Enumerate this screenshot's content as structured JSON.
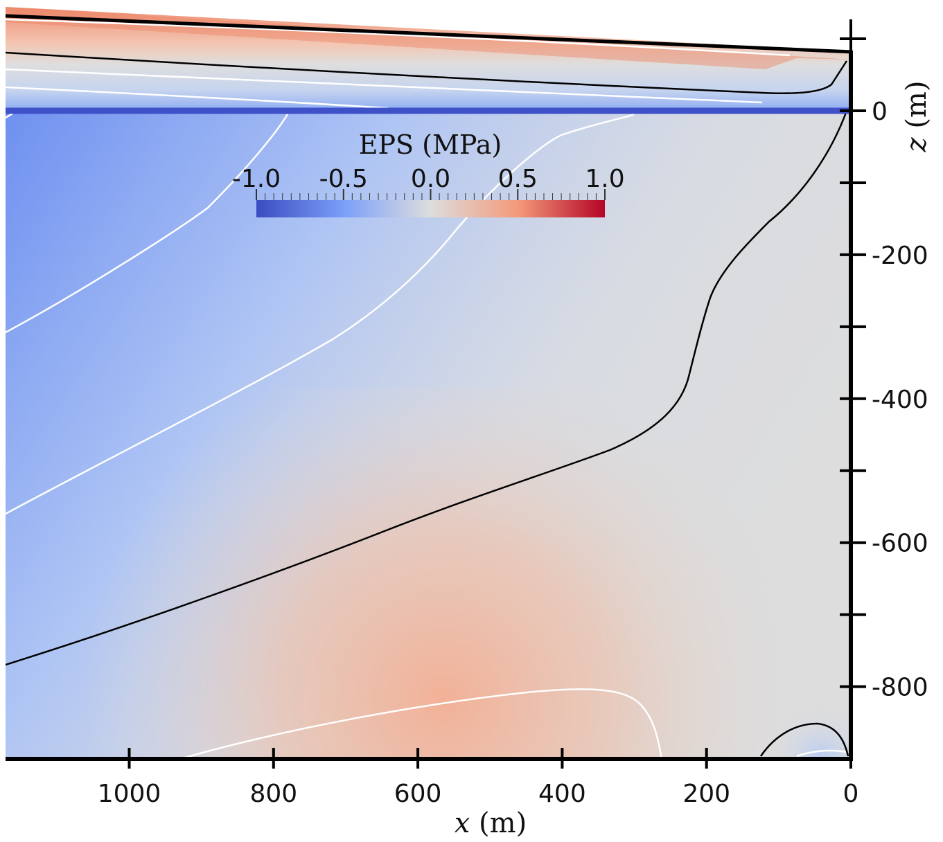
{
  "chart_data": {
    "type": "heatmap",
    "title": "",
    "xlabel": {
      "var": "x",
      "unit": " (m)"
    },
    "ylabel": {
      "var": "z",
      "unit": " (m)"
    },
    "x_axis_reversed": true,
    "xlim": [
      1170,
      0
    ],
    "ylim": [
      -900,
      80
    ],
    "x_ticks": [
      1000,
      800,
      600,
      400,
      200,
      0
    ],
    "x_tick_labels": [
      "1000",
      "800",
      "600",
      "400",
      "200",
      "0"
    ],
    "y_ticks_labeled": [
      0,
      -200,
      -400,
      -600,
      -800
    ],
    "y_tick_labels": [
      "0",
      "-200",
      "-400",
      "-600",
      "-800"
    ],
    "y_ticks_minor": [
      100,
      -100,
      -300,
      -500,
      -700
    ],
    "colorbar": {
      "title": "EPS (MPa)",
      "range": [
        -1.0,
        1.0
      ],
      "ticks": [
        -1.0,
        -0.5,
        0.0,
        0.5,
        1.0
      ],
      "tick_labels": [
        "-1.0",
        "-0.5",
        "0.0",
        "0.5",
        "1.0"
      ],
      "colormap": "coolwarm",
      "colors": {
        "low": "#3b4cc0",
        "mid": "#dddddd",
        "high": "#b40426"
      }
    },
    "surface_line": {
      "z": 0,
      "color": "#3f51c9"
    },
    "ice_surface_z": {
      "x_far": 130,
      "x_front": 80
    },
    "contours": {
      "zero_contour_color": "#000000",
      "level_contour_color": "#ffffff"
    },
    "legend": "none",
    "grid": false
  }
}
